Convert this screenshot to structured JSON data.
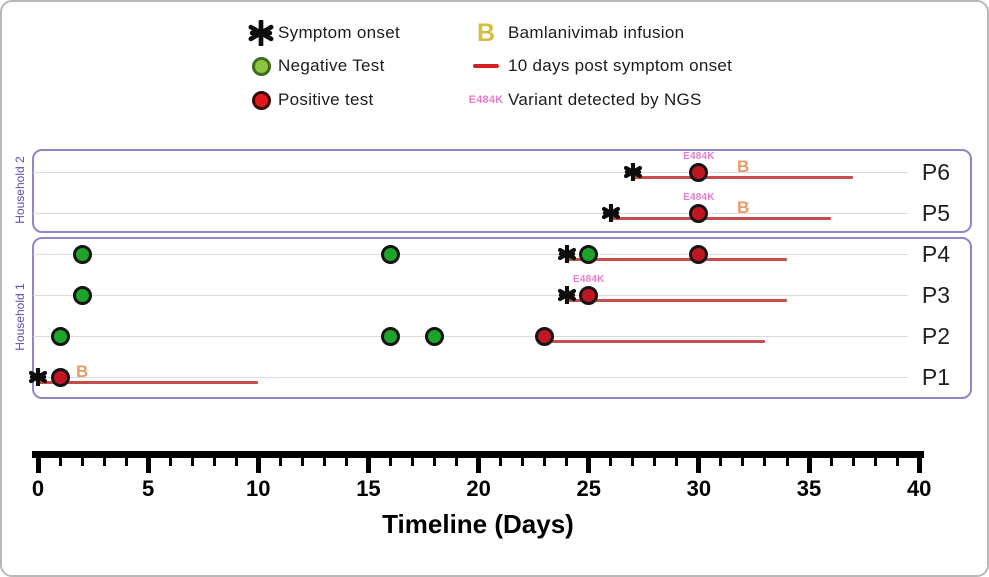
{
  "legend": {
    "symptom_onset": "Symptom onset",
    "negative_test": "Negative Test",
    "positive_test": "Positive test",
    "b_symbol": "B",
    "bamlanivimab": "Bamlanivimab infusion",
    "ten_days_line": "10 days post symptom onset",
    "variant_symbol": "E484K",
    "variant_text": "Variant detected by NGS"
  },
  "colors": {
    "legend_negative_fill": "#8cc63e",
    "legend_negative_ring": "#3f6d1f",
    "legend_positive_fill": "#e01818",
    "legend_positive_ring": "#3a0a0a",
    "row_negative_fill": "#1ea32b",
    "row_positive_fill": "#bf1622",
    "marker_ring": "#151515",
    "b_legend": "#d4bf45",
    "b_row": "#e89b66",
    "legend_dash_red": "#d42020",
    "row_line_red": "#c74d4d",
    "variant_pink": "#e87ccc",
    "box_border": "#8f86cd",
    "household_label": "#5750b5",
    "gridline": "#dcdcdc",
    "axis_black": "#000000"
  },
  "chart_data": {
    "type": "timeline",
    "xlabel": "Timeline (Days)",
    "axis": {
      "min": 0,
      "max": 40,
      "major_tick_step": 5,
      "minor_tick_step": 1,
      "major_tick_labels": [
        0,
        5,
        10,
        15,
        20,
        25,
        30,
        35,
        40
      ]
    },
    "households": [
      {
        "name": "Household 2",
        "patients": [
          {
            "id": "P6",
            "symptom_onset_day": 27,
            "post_onset_line": [
              27,
              37
            ],
            "tests": [
              {
                "day": 30,
                "result": "positive",
                "variant": "E484K"
              }
            ],
            "bamlanivimab_day": 32
          },
          {
            "id": "P5",
            "symptom_onset_day": 26,
            "post_onset_line": [
              26,
              36
            ],
            "tests": [
              {
                "day": 30,
                "result": "positive",
                "variant": "E484K"
              }
            ],
            "bamlanivimab_day": 32
          }
        ]
      },
      {
        "name": "Household 1",
        "patients": [
          {
            "id": "P4",
            "symptom_onset_day": 24,
            "post_onset_line": [
              24,
              34
            ],
            "tests": [
              {
                "day": 2,
                "result": "negative"
              },
              {
                "day": 16,
                "result": "negative"
              },
              {
                "day": 25,
                "result": "negative"
              },
              {
                "day": 30,
                "result": "positive"
              }
            ]
          },
          {
            "id": "P3",
            "symptom_onset_day": 24,
            "post_onset_line": [
              24,
              34
            ],
            "tests": [
              {
                "day": 2,
                "result": "negative"
              },
              {
                "day": 25,
                "result": "positive",
                "variant": "E484K"
              }
            ]
          },
          {
            "id": "P2",
            "post_onset_line": [
              23,
              33
            ],
            "tests": [
              {
                "day": 1,
                "result": "negative"
              },
              {
                "day": 16,
                "result": "negative"
              },
              {
                "day": 18,
                "result": "negative"
              },
              {
                "day": 23,
                "result": "positive"
              }
            ]
          },
          {
            "id": "P1",
            "symptom_onset_day": 0,
            "post_onset_line": [
              0,
              10
            ],
            "tests": [
              {
                "day": 1,
                "result": "positive"
              }
            ],
            "bamlanivimab_day": 2
          }
        ]
      }
    ]
  }
}
